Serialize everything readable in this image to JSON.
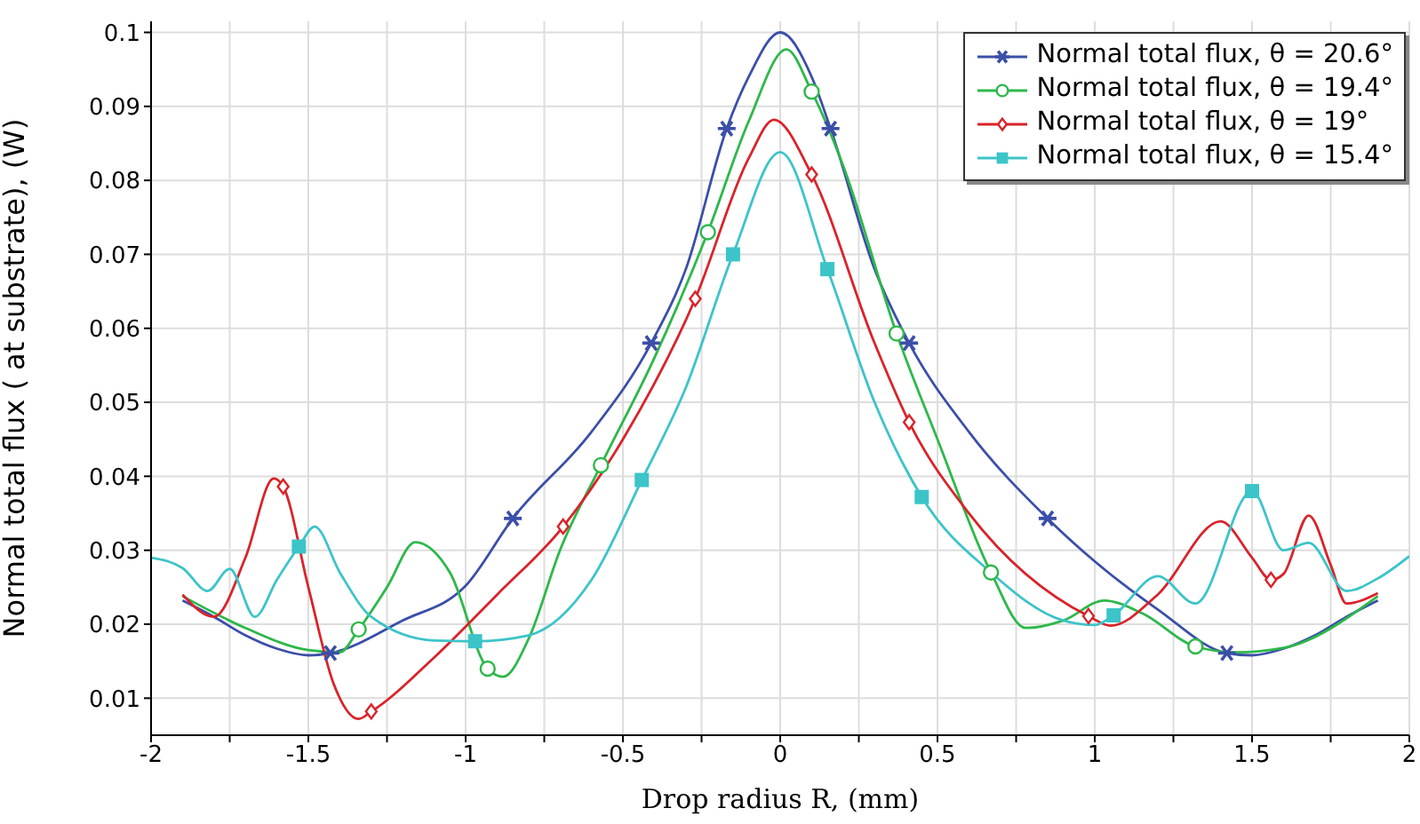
{
  "chart_data": {
    "type": "line",
    "xlabel": "Drop radius R, (mm)",
    "ylabel": "Normal total flux ( at substrate), (W)",
    "xlim": [
      -2,
      2
    ],
    "xticks": [
      -2,
      {
        "value": -1.75,
        "label": null
      },
      -1.5,
      {
        "value": -1.25,
        "label": null
      },
      -1,
      {
        "value": -0.75,
        "label": null
      },
      -0.5,
      {
        "value": -0.25,
        "label": null
      },
      0,
      {
        "value": 0.25,
        "label": null
      },
      0.5,
      {
        "value": 0.75,
        "label": null
      },
      1,
      {
        "value": 1.25,
        "label": null
      },
      1.5,
      {
        "value": 1.75,
        "label": null
      },
      2
    ],
    "ylim": [
      0.005,
      0.1015
    ],
    "yticks": [
      0.01,
      0.02,
      0.03,
      0.04,
      0.05,
      0.06,
      0.07,
      0.08,
      0.09,
      0.1
    ],
    "grid": true,
    "legend": "top right",
    "line_style": "solid",
    "series": [
      {
        "name": "Normal total flux, θ = 20.6°",
        "color": "#3b4fa8",
        "x": [
          -1.9,
          -1.8,
          -1.7,
          -1.6,
          -1.5,
          -1.43,
          -1.2,
          -1,
          -0.85,
          -0.6,
          -0.41,
          -0.3,
          -0.17,
          -0.1,
          0,
          0.1,
          0.16,
          0.3,
          0.41,
          0.6,
          0.85,
          1,
          1.2,
          1.42,
          1.5,
          1.6,
          1.7,
          1.8,
          1.9
        ],
        "values": [
          0.0232,
          0.021,
          0.0185,
          0.0167,
          0.0158,
          0.0161,
          0.0205,
          0.0252,
          0.0343,
          0.046,
          0.058,
          0.068,
          0.087,
          0.094,
          0.1,
          0.094,
          0.087,
          0.068,
          0.058,
          0.046,
          0.0343,
          0.0285,
          0.022,
          0.0161,
          0.0158,
          0.0167,
          0.0185,
          0.021,
          0.0232
        ]
      },
      {
        "color": "#3b4fa8",
        "type": "scatter",
        "marker": "cross",
        "x": [
          -1.43,
          -0.85,
          -0.41,
          -0.17,
          0.16,
          0.41,
          0.85,
          1.42
        ],
        "values": [
          0.0161,
          0.0343,
          0.058,
          0.087,
          0.087,
          0.058,
          0.0343,
          0.0161
        ]
      },
      {
        "name": "Normal total flux, θ = 19.4°",
        "color": "#2db84a",
        "x": [
          -1.9,
          -1.7,
          -1.5,
          -1.4,
          -1.34,
          -1.25,
          -1.16,
          -1.05,
          -0.93,
          -0.88,
          -0.8,
          -0.7,
          -0.57,
          -0.4,
          -0.23,
          -0.1,
          0.02,
          0.1,
          0.2,
          0.37,
          0.5,
          0.67,
          0.78,
          0.9,
          1.03,
          1.15,
          1.32,
          1.45,
          1.6,
          1.9
        ],
        "values": [
          0.0238,
          0.0195,
          0.0165,
          0.0162,
          0.0193,
          0.025,
          0.0311,
          0.027,
          0.014,
          0.0129,
          0.018,
          0.03,
          0.0415,
          0.056,
          0.073,
          0.088,
          0.0977,
          0.092,
          0.082,
          0.0593,
          0.045,
          0.027,
          0.0195,
          0.0205,
          0.0232,
          0.0215,
          0.017,
          0.0162,
          0.0168,
          0.0238
        ]
      },
      {
        "color": "#2db84a",
        "type": "scatter",
        "marker": "circle",
        "x": [
          -1.34,
          -0.93,
          -0.57,
          -0.23,
          0.1,
          0.37,
          0.67,
          1.32
        ],
        "values": [
          0.0193,
          0.014,
          0.0415,
          0.073,
          0.092,
          0.0593,
          0.027,
          0.017
        ]
      },
      {
        "name": "Normal total flux, θ = 19°",
        "color": "#d9232a",
        "x": [
          -1.9,
          -1.8,
          -1.7,
          -1.61,
          -1.58,
          -1.5,
          -1.42,
          -1.34,
          -1.3,
          -1.1,
          -0.9,
          -0.69,
          -0.5,
          -0.27,
          -0.1,
          -0.02,
          0.1,
          0.3,
          0.41,
          0.6,
          0.98,
          1.05,
          1.2,
          1.4,
          1.5,
          1.56,
          1.6,
          1.68,
          1.75,
          1.8,
          1.9
        ],
        "values": [
          0.024,
          0.021,
          0.029,
          0.0397,
          0.0386,
          0.025,
          0.012,
          0.0072,
          0.0082,
          0.0155,
          0.024,
          0.0332,
          0.045,
          0.064,
          0.083,
          0.0882,
          0.0808,
          0.058,
          0.0473,
          0.035,
          0.0211,
          0.0198,
          0.024,
          0.0339,
          0.029,
          0.026,
          0.0268,
          0.0347,
          0.028,
          0.0228,
          0.0242
        ]
      },
      {
        "color": "#d9232a",
        "type": "scatter",
        "marker": "diamond",
        "x": [
          -1.58,
          -1.3,
          -0.69,
          -0.27,
          0.1,
          0.41,
          0.98,
          1.56
        ],
        "values": [
          0.0386,
          0.0082,
          0.0332,
          0.064,
          0.0808,
          0.0473,
          0.0211,
          0.026
        ]
      },
      {
        "name": "Normal total flux, θ = 15.4°",
        "color": "#3cc4c8",
        "x": [
          -2,
          -1.9,
          -1.82,
          -1.75,
          -1.67,
          -1.6,
          -1.53,
          -1.48,
          -1.4,
          -1.3,
          -1.1,
          -0.97,
          -0.8,
          -0.6,
          -0.44,
          -0.3,
          -0.15,
          0,
          0.15,
          0.3,
          0.45,
          0.67,
          0.9,
          1,
          1.06,
          1.2,
          1.32,
          1.5,
          1.6,
          1.68,
          1.8,
          1.9,
          2
        ],
        "values": [
          0.029,
          0.0276,
          0.0245,
          0.0275,
          0.021,
          0.026,
          0.0305,
          0.0332,
          0.027,
          0.021,
          0.0178,
          0.0177,
          0.0185,
          0.026,
          0.0395,
          0.052,
          0.07,
          0.0838,
          0.068,
          0.05,
          0.0372,
          0.027,
          0.0205,
          0.0199,
          0.0212,
          0.0265,
          0.0228,
          0.038,
          0.03,
          0.031,
          0.0245,
          0.0262,
          0.0292
        ]
      },
      {
        "color": "#3cc4c8",
        "type": "scatter",
        "marker": "square",
        "x": [
          -1.53,
          -0.97,
          -0.44,
          -0.15,
          0.15,
          0.45,
          1.06,
          1.5
        ],
        "values": [
          0.0305,
          0.0177,
          0.0395,
          0.07,
          0.068,
          0.0372,
          0.0212,
          0.038
        ]
      }
    ]
  }
}
